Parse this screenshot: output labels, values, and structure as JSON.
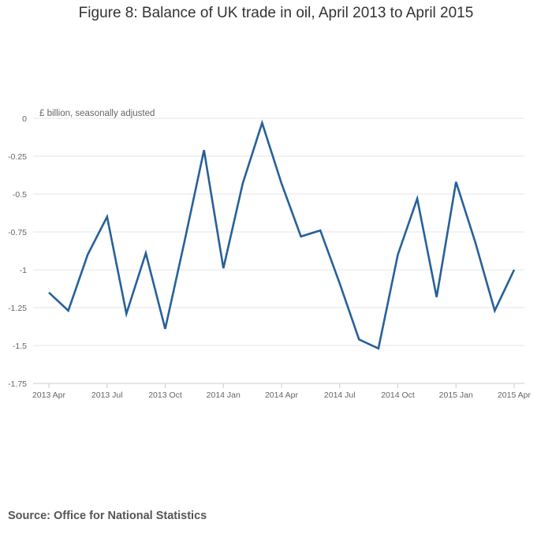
{
  "chart_data": {
    "type": "line",
    "title": "Figure 8: Balance of UK trade in oil, April 2013 to April 2015",
    "ylabel": "£ billion, seasonally adjusted",
    "xlabel": "",
    "source": "Source: Office for National Statistics",
    "ylim": [
      -1.75,
      0
    ],
    "yticks": [
      0,
      -0.25,
      -0.5,
      -0.75,
      -1,
      -1.25,
      -1.5,
      -1.75
    ],
    "ytick_labels": [
      "0",
      "-0.25",
      "-0.5",
      "-0.75",
      "-1",
      "-1.25",
      "-1.5",
      "-1.75"
    ],
    "xticks": [
      {
        "index": 0,
        "label": "2013 Apr"
      },
      {
        "index": 3,
        "label": "2013 Jul"
      },
      {
        "index": 6,
        "label": "2013 Oct"
      },
      {
        "index": 9,
        "label": "2014 Jan"
      },
      {
        "index": 12,
        "label": "2014 Apr"
      },
      {
        "index": 15,
        "label": "2014 Jul"
      },
      {
        "index": 18,
        "label": "2014 Oct"
      },
      {
        "index": 21,
        "label": "2015 Jan"
      },
      {
        "index": 24,
        "label": "2015 Apr"
      }
    ],
    "x": [
      "2013 Apr",
      "2013 May",
      "2013 Jun",
      "2013 Jul",
      "2013 Aug",
      "2013 Sep",
      "2013 Oct",
      "2013 Nov",
      "2013 Dec",
      "2014 Jan",
      "2014 Feb",
      "2014 Mar",
      "2014 Apr",
      "2014 May",
      "2014 Jun",
      "2014 Jul",
      "2014 Aug",
      "2014 Sep",
      "2014 Oct",
      "2014 Nov",
      "2014 Dec",
      "2015 Jan",
      "2015 Feb",
      "2015 Mar",
      "2015 Apr"
    ],
    "series": [
      {
        "values": [
          -1.15,
          -1.27,
          -0.9,
          -0.65,
          -1.29,
          -0.89,
          -1.39,
          -0.81,
          -0.21,
          -0.99,
          -0.43,
          -0.03,
          -0.43,
          -0.78,
          -0.74,
          -1.09,
          -1.46,
          -1.52,
          -0.9,
          -0.53,
          -1.18,
          -0.42,
          -0.82,
          -1.27,
          -1.0
        ],
        "color": "#27609a"
      }
    ],
    "grid": true
  }
}
